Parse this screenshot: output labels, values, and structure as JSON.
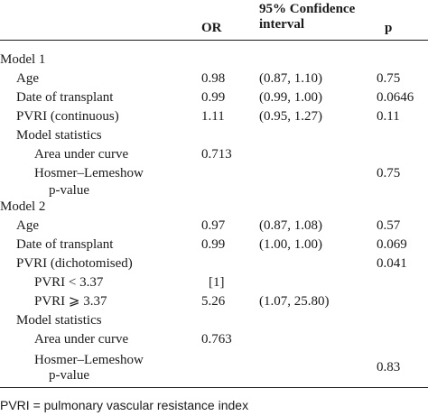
{
  "header": {
    "or": "OR",
    "ci_line1": "95% Confidence",
    "ci_line2": "interval",
    "p": "p"
  },
  "model1": {
    "title": "Model 1",
    "age": {
      "label": "Age",
      "or": "0.98",
      "ci": "(0.87, 1.10)",
      "p": "0.75"
    },
    "date": {
      "label": "Date of transplant",
      "or": "0.99",
      "ci": "(0.99, 1.00)",
      "p": "0.0646"
    },
    "pvri": {
      "label": "PVRI (continuous)",
      "or": "1.11",
      "ci": "(0.95, 1.27)",
      "p": "0.11"
    },
    "stats": {
      "label": "Model statistics",
      "auc_label": "Area under curve",
      "auc": "0.713",
      "hl_label1": "Hosmer–Lemeshow",
      "hl_label2": "p-value",
      "hl_p": "0.75"
    }
  },
  "model2": {
    "title": "Model 2",
    "age": {
      "label": "Age",
      "or": "0.97",
      "ci": "(0.87, 1.08)",
      "p": "0.57"
    },
    "date": {
      "label": "Date of transplant",
      "or": "0.99",
      "ci": "(1.00, 1.00)",
      "p": "0.069"
    },
    "pvri": {
      "label": "PVRI (dichotomised)",
      "p": "0.041"
    },
    "pvri_low": {
      "label": "PVRI < 3.37",
      "or": "[1]"
    },
    "pvri_high": {
      "label": "PVRI ⩾ 3.37",
      "or": "5.26",
      "ci": "(1.07, 25.80)"
    },
    "stats": {
      "label": "Model statistics",
      "auc_label": "Area under curve",
      "auc": "0.763",
      "hl_label1": "Hosmer–Lemeshow",
      "hl_label2": "p-value",
      "hl_p": "0.83"
    }
  },
  "footnote": "PVRI = pulmonary vascular resistance index"
}
